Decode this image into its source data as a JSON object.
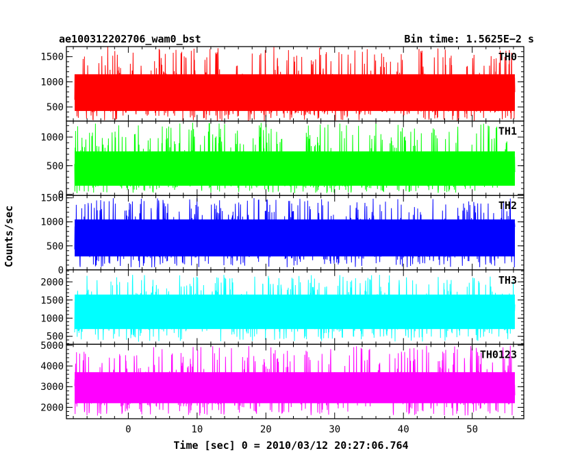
{
  "chart_data": {
    "type": "line",
    "title_left": "ae100312202706_wam0_bst",
    "title_right": "Bin time: 1.5625E−2 s",
    "xlabel": "Time [sec] 0 = 2010/03/12 20:27:06.764",
    "ylabel": "Counts/sec",
    "xlim": [
      -9,
      57.5
    ],
    "x_ticks": [
      0,
      10,
      20,
      30,
      40,
      50
    ],
    "x_data_range": [
      -7.8,
      56.2
    ],
    "grid": false,
    "panels": [
      {
        "name": "TH0",
        "color": "#ff0000",
        "ylim": [
          220,
          1700
        ],
        "y_ticks": [
          500,
          1000,
          1500
        ],
        "typical_range": [
          420,
          1150
        ],
        "peak_range": [
          1150,
          1700
        ],
        "dip_range": [
          220,
          420
        ]
      },
      {
        "name": "TH1",
        "color": "#00ff00",
        "ylim": [
          -20,
          1280
        ],
        "y_ticks": [
          0,
          500,
          1000
        ],
        "typical_range": [
          150,
          750
        ],
        "peak_range": [
          750,
          1250
        ],
        "dip_range": [
          20,
          150
        ]
      },
      {
        "name": "TH2",
        "color": "#0000ff",
        "ylim": [
          0,
          1550
        ],
        "y_ticks": [
          0,
          500,
          1000,
          1500
        ],
        "typical_range": [
          280,
          1050
        ],
        "peak_range": [
          1050,
          1500
        ],
        "dip_range": [
          50,
          280
        ]
      },
      {
        "name": "TH3",
        "color": "#00ffff",
        "ylim": [
          280,
          2330
        ],
        "y_ticks": [
          500,
          1000,
          1500,
          2000
        ],
        "typical_range": [
          700,
          1650
        ],
        "peak_range": [
          1650,
          2200
        ],
        "dip_range": [
          350,
          700
        ]
      },
      {
        "name": "TH0123",
        "color": "#ff00ff",
        "ylim": [
          1450,
          5050
        ],
        "y_ticks": [
          2000,
          3000,
          4000,
          5000
        ],
        "typical_range": [
          2200,
          3700
        ],
        "peak_range": [
          3700,
          5000
        ],
        "dip_range": [
          1600,
          2200
        ]
      }
    ]
  }
}
